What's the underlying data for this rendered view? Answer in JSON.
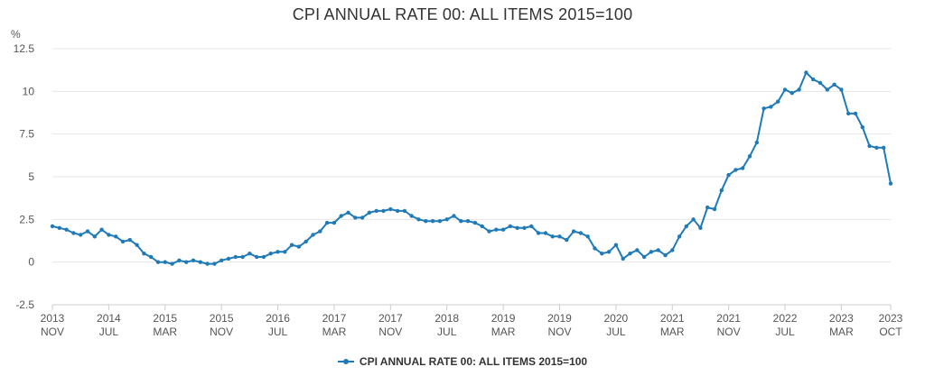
{
  "chart_data": {
    "type": "line",
    "title": "CPI ANNUAL RATE 00: ALL ITEMS 2015=100",
    "ylabel": "%",
    "xlabel": "",
    "ylim": [
      -2.5,
      12.5
    ],
    "yticks": [
      "12.5",
      "10",
      "7.5",
      "5",
      "2.5",
      "0",
      "-2.5"
    ],
    "ytick_values": [
      12.5,
      10,
      7.5,
      5,
      2.5,
      0,
      -2.5
    ],
    "grid": true,
    "legend": "bottom-center",
    "x_start": "2013-11",
    "x_end": "2023-10",
    "xticks": [
      {
        "year": "2013",
        "month": "NOV",
        "date": "2013-11"
      },
      {
        "year": "2014",
        "month": "JUL",
        "date": "2014-07"
      },
      {
        "year": "2015",
        "month": "MAR",
        "date": "2015-03"
      },
      {
        "year": "2015",
        "month": "NOV",
        "date": "2015-11"
      },
      {
        "year": "2016",
        "month": "JUL",
        "date": "2016-07"
      },
      {
        "year": "2017",
        "month": "MAR",
        "date": "2017-03"
      },
      {
        "year": "2017",
        "month": "NOV",
        "date": "2017-11"
      },
      {
        "year": "2018",
        "month": "JUL",
        "date": "2018-07"
      },
      {
        "year": "2019",
        "month": "MAR",
        "date": "2019-03"
      },
      {
        "year": "2019",
        "month": "NOV",
        "date": "2019-11"
      },
      {
        "year": "2020",
        "month": "JUL",
        "date": "2020-07"
      },
      {
        "year": "2021",
        "month": "MAR",
        "date": "2021-03"
      },
      {
        "year": "2021",
        "month": "NOV",
        "date": "2021-11"
      },
      {
        "year": "2022",
        "month": "JUL",
        "date": "2022-07"
      },
      {
        "year": "2023",
        "month": "MAR",
        "date": "2023-03"
      },
      {
        "year": "2023",
        "month": "OCT",
        "date": "2023-10"
      }
    ],
    "series": [
      {
        "name": "CPI ANNUAL RATE 00: ALL ITEMS 2015=100",
        "color": "#1f7ab8",
        "x": [
          "2013-11",
          "2013-12",
          "2014-01",
          "2014-02",
          "2014-03",
          "2014-04",
          "2014-05",
          "2014-06",
          "2014-07",
          "2014-08",
          "2014-09",
          "2014-10",
          "2014-11",
          "2014-12",
          "2015-01",
          "2015-02",
          "2015-03",
          "2015-04",
          "2015-05",
          "2015-06",
          "2015-07",
          "2015-08",
          "2015-09",
          "2015-10",
          "2015-11",
          "2015-12",
          "2016-01",
          "2016-02",
          "2016-03",
          "2016-04",
          "2016-05",
          "2016-06",
          "2016-07",
          "2016-08",
          "2016-09",
          "2016-10",
          "2016-11",
          "2016-12",
          "2017-01",
          "2017-02",
          "2017-03",
          "2017-04",
          "2017-05",
          "2017-06",
          "2017-07",
          "2017-08",
          "2017-09",
          "2017-10",
          "2017-11",
          "2017-12",
          "2018-01",
          "2018-02",
          "2018-03",
          "2018-04",
          "2018-05",
          "2018-06",
          "2018-07",
          "2018-08",
          "2018-09",
          "2018-10",
          "2018-11",
          "2018-12",
          "2019-01",
          "2019-02",
          "2019-03",
          "2019-04",
          "2019-05",
          "2019-06",
          "2019-07",
          "2019-08",
          "2019-09",
          "2019-10",
          "2019-11",
          "2019-12",
          "2020-01",
          "2020-02",
          "2020-03",
          "2020-04",
          "2020-05",
          "2020-06",
          "2020-07",
          "2020-08",
          "2020-09",
          "2020-10",
          "2020-11",
          "2020-12",
          "2021-01",
          "2021-02",
          "2021-03",
          "2021-04",
          "2021-05",
          "2021-06",
          "2021-07",
          "2021-08",
          "2021-09",
          "2021-10",
          "2021-11",
          "2021-12",
          "2022-01",
          "2022-02",
          "2022-03",
          "2022-04",
          "2022-05",
          "2022-06",
          "2022-07",
          "2022-08",
          "2022-09",
          "2022-10",
          "2022-11",
          "2022-12",
          "2023-01",
          "2023-02",
          "2023-03",
          "2023-04",
          "2023-05",
          "2023-06",
          "2023-07",
          "2023-08",
          "2023-09",
          "2023-10"
        ],
        "values": [
          2.1,
          2.0,
          1.9,
          1.7,
          1.6,
          1.8,
          1.5,
          1.9,
          1.6,
          1.5,
          1.2,
          1.3,
          1.0,
          0.5,
          0.3,
          0.0,
          0.0,
          -0.1,
          0.1,
          0.0,
          0.1,
          0.0,
          -0.1,
          -0.1,
          0.1,
          0.2,
          0.3,
          0.3,
          0.5,
          0.3,
          0.3,
          0.5,
          0.6,
          0.6,
          1.0,
          0.9,
          1.2,
          1.6,
          1.8,
          2.3,
          2.3,
          2.7,
          2.9,
          2.6,
          2.6,
          2.9,
          3.0,
          3.0,
          3.1,
          3.0,
          3.0,
          2.7,
          2.5,
          2.4,
          2.4,
          2.4,
          2.5,
          2.7,
          2.4,
          2.4,
          2.3,
          2.1,
          1.8,
          1.9,
          1.9,
          2.1,
          2.0,
          2.0,
          2.1,
          1.7,
          1.7,
          1.5,
          1.5,
          1.3,
          1.8,
          1.7,
          1.5,
          0.8,
          0.5,
          0.6,
          1.0,
          0.2,
          0.5,
          0.7,
          0.3,
          0.6,
          0.7,
          0.4,
          0.7,
          1.5,
          2.1,
          2.5,
          2.0,
          3.2,
          3.1,
          4.2,
          5.1,
          5.4,
          5.5,
          6.2,
          7.0,
          9.0,
          9.1,
          9.4,
          10.1,
          9.9,
          10.1,
          11.1,
          10.7,
          10.5,
          10.1,
          10.4,
          10.1,
          8.7,
          8.7,
          7.9,
          6.8,
          6.7,
          6.7,
          4.6
        ]
      }
    ]
  }
}
